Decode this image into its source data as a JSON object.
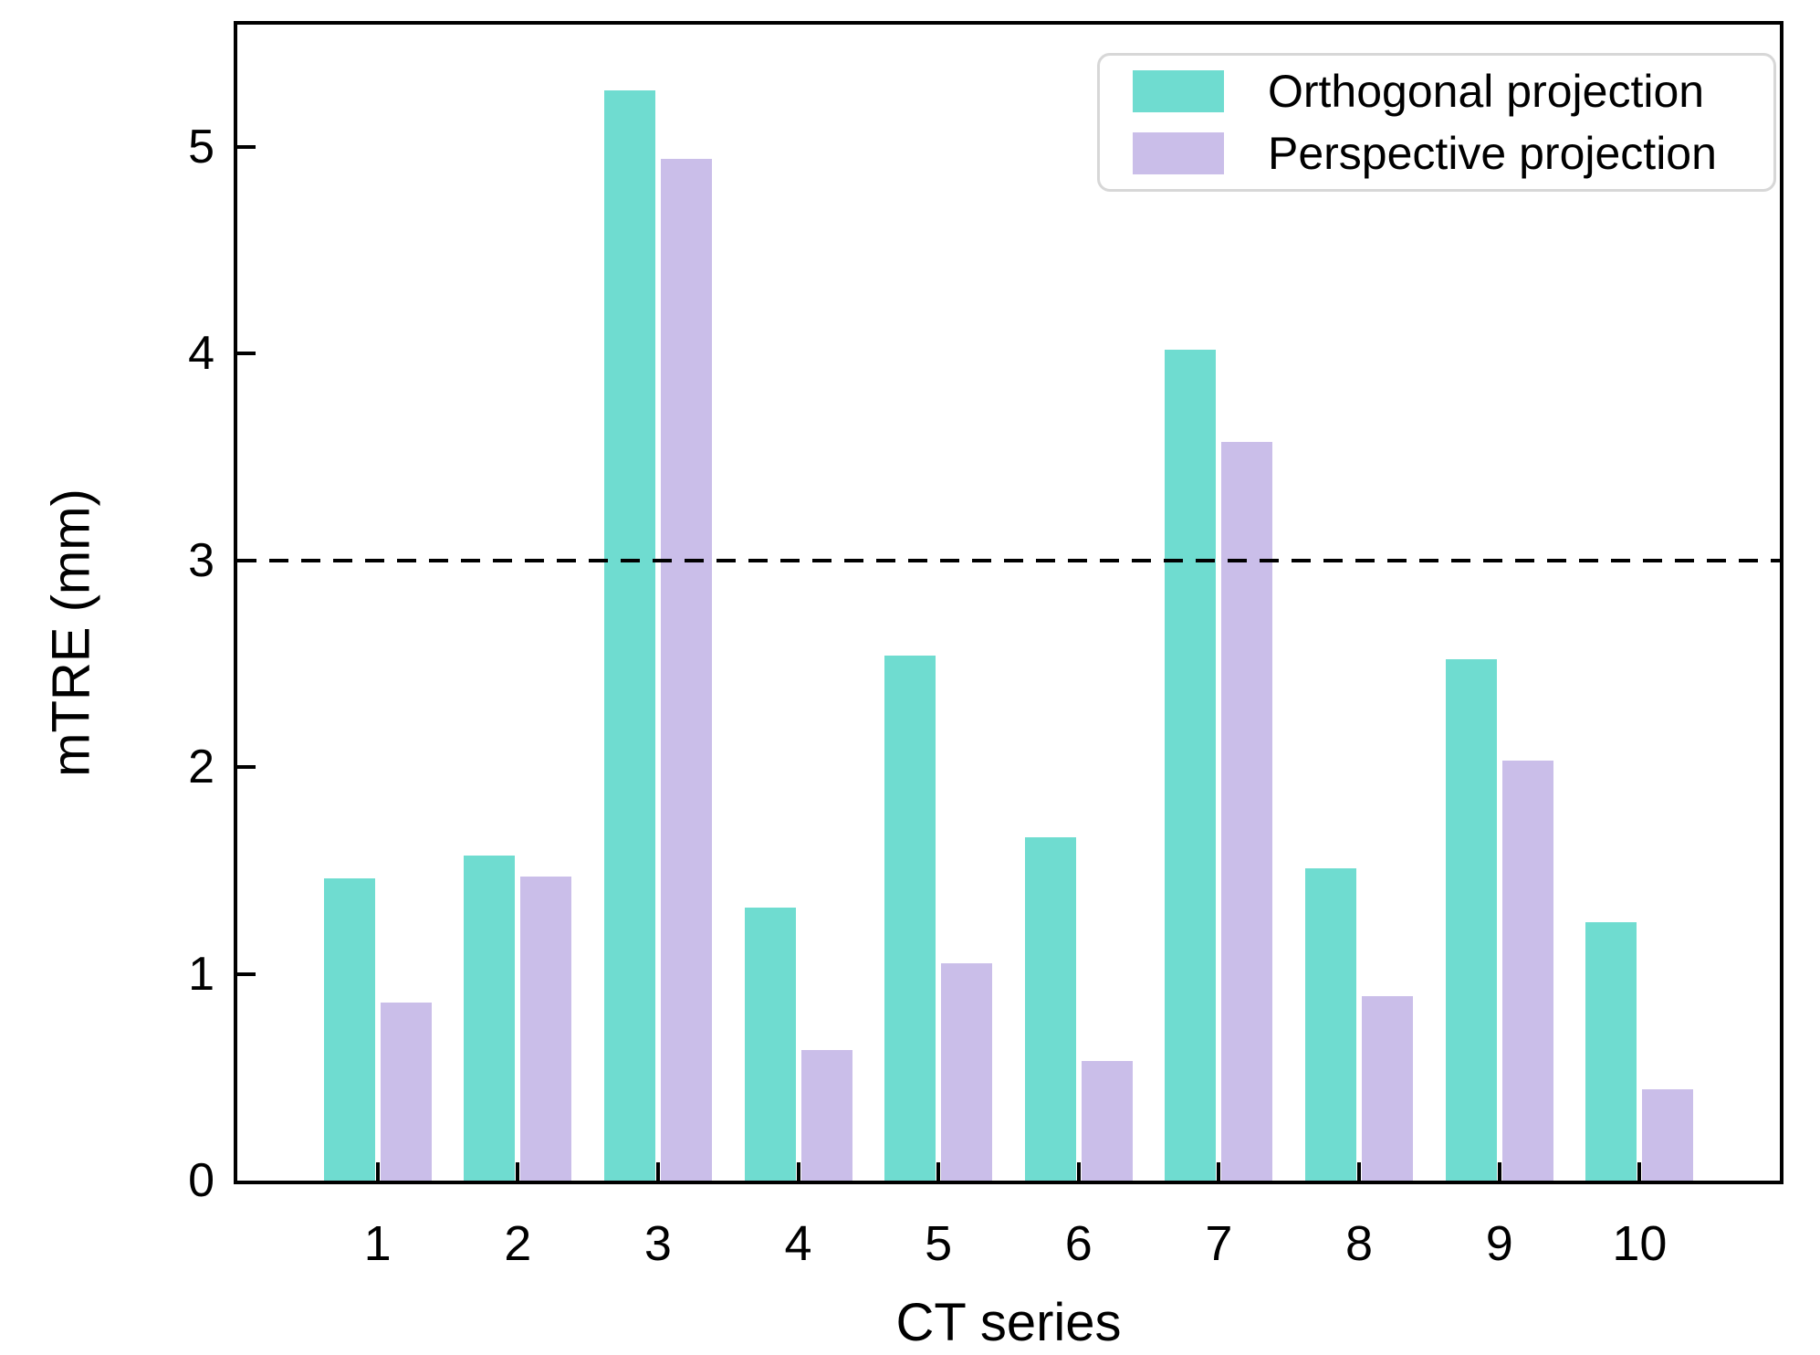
{
  "chart_data": {
    "type": "bar",
    "title": "",
    "xlabel": "CT series",
    "ylabel": "mTRE (mm)",
    "categories": [
      "1",
      "2",
      "3",
      "4",
      "5",
      "6",
      "7",
      "8",
      "9",
      "10"
    ],
    "series": [
      {
        "name": "Orthogonal projection",
        "color": "#6fdcd0",
        "values": [
          1.46,
          1.57,
          5.27,
          1.32,
          2.54,
          1.66,
          4.02,
          1.51,
          2.52,
          1.25
        ]
      },
      {
        "name": "Perspective projection",
        "color": "#cabee9",
        "values": [
          0.86,
          1.47,
          4.94,
          0.63,
          1.05,
          0.58,
          3.57,
          0.89,
          2.03,
          0.44
        ]
      }
    ],
    "yticks": [
      0,
      1,
      2,
      3,
      4,
      5
    ],
    "ylim": [
      0,
      5.59
    ],
    "threshold_line": {
      "value": 3,
      "style": "dashed",
      "color": "#000000"
    },
    "legend_position": "upper right",
    "grid": false,
    "axis_color": "#000000"
  }
}
